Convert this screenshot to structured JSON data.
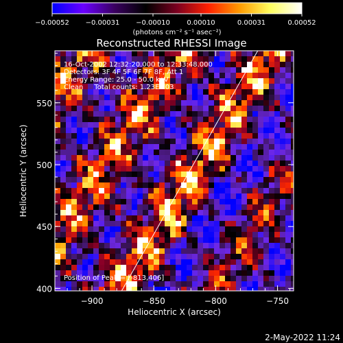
{
  "chart_data": {
    "type": "heatmap",
    "title": "Reconstructed RHESSI Image",
    "xlabel": "Heliocentric X (arcsec)",
    "ylabel": "Heliocentric Y (arcsec)",
    "xlim": [
      -930,
      -737
    ],
    "ylim": [
      398,
      592
    ],
    "x_ticks": [
      -900,
      -850,
      -800,
      -750
    ],
    "y_ticks": [
      400,
      450,
      500,
      550
    ],
    "x_tick_labels": [
      "−900",
      "−850",
      "−800",
      "−750"
    ],
    "y_tick_labels": [
      "400",
      "450",
      "500",
      "550"
    ],
    "colorbar": {
      "range": [
        -0.00052,
        0.00052
      ],
      "ticks": [
        -0.00052,
        -0.00031,
        -0.0001,
        0.0001,
        0.00031,
        0.00052
      ],
      "tick_labels": [
        "−0.00052",
        "−0.00031",
        "−0.00010",
        "0.00010",
        "0.00031",
        "0.00052"
      ],
      "unit_label": "(photons cm⁻² s⁻¹ asec⁻²)",
      "colormap": [
        "#0000ff",
        "#6a00ff",
        "#3a0060",
        "#000000",
        "#7a0020",
        "#ff2000",
        "#ff9a00",
        "#ffff60",
        "#ffffff"
      ]
    },
    "limb_line": {
      "from": [
        -876,
        398
      ],
      "to": [
        -766,
        592
      ]
    },
    "annotations": {
      "line1": "16-Oct-2002 12:32:20.000 to 12:33:48.000",
      "line2": "Detectors: 3F 4F 5F 6F 7F 8F, Att 1",
      "line3": "Energy Range: 25.0 - 50.0 keV",
      "line4": "Clean     Total counts: 1.23E+03",
      "peak": "Position of Peak = [-813,406]"
    },
    "grid": false,
    "legend": "none"
  },
  "footer": {
    "timestamp": "2-May-2022 11:24"
  }
}
